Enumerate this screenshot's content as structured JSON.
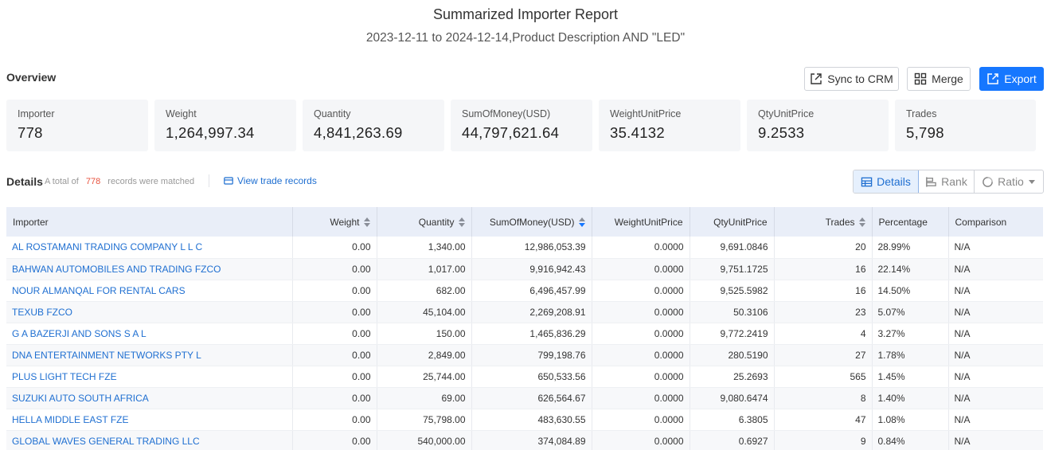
{
  "report": {
    "title": "Summarized Importer Report",
    "subtitle": "2023-12-11 to 2024-12-14,Product Description AND \"LED\""
  },
  "overview": {
    "label": "Overview",
    "buttons": {
      "sync": "Sync to CRM",
      "merge": "Merge",
      "export": "Export"
    },
    "stats": [
      {
        "label": "Importer",
        "value": "778"
      },
      {
        "label": "Weight",
        "value": "1,264,997.34"
      },
      {
        "label": "Quantity",
        "value": "4,841,263.69"
      },
      {
        "label": "SumOfMoney(USD)",
        "value": "44,797,621.64"
      },
      {
        "label": "WeightUnitPrice",
        "value": "35.4132"
      },
      {
        "label": "QtyUnitPrice",
        "value": "9.2533"
      },
      {
        "label": "Trades",
        "value": "5,798"
      }
    ]
  },
  "details": {
    "label": "Details",
    "prefix": "A total of",
    "count": "778",
    "suffix": "records were matched",
    "view_trade": "View trade records",
    "views": {
      "details": "Details",
      "rank": "Rank",
      "ratio": "Ratio"
    }
  },
  "table": {
    "headers": [
      "Importer",
      "Weight",
      "Quantity",
      "SumOfMoney(USD)",
      "WeightUnitPrice",
      "QtyUnitPrice",
      "Trades",
      "Percentage",
      "Comparison"
    ],
    "rows": [
      [
        "AL ROSTAMANI TRADING COMPANY L L C",
        "0.00",
        "1,340.00",
        "12,986,053.39",
        "0.0000",
        "9,691.0846",
        "20",
        "28.99%",
        "N/A"
      ],
      [
        "BAHWAN AUTOMOBILES AND TRADING FZCO",
        "0.00",
        "1,017.00",
        "9,916,942.43",
        "0.0000",
        "9,751.1725",
        "16",
        "22.14%",
        "N/A"
      ],
      [
        "NOUR ALMANQAL FOR RENTAL CARS",
        "0.00",
        "682.00",
        "6,496,457.99",
        "0.0000",
        "9,525.5982",
        "16",
        "14.50%",
        "N/A"
      ],
      [
        "TEXUB FZCO",
        "0.00",
        "45,104.00",
        "2,269,208.91",
        "0.0000",
        "50.3106",
        "23",
        "5.07%",
        "N/A"
      ],
      [
        "G A BAZERJI AND SONS S A L",
        "0.00",
        "150.00",
        "1,465,836.29",
        "0.0000",
        "9,772.2419",
        "4",
        "3.27%",
        "N/A"
      ],
      [
        "DNA ENTERTAINMENT NETWORKS PTY L",
        "0.00",
        "2,849.00",
        "799,198.76",
        "0.0000",
        "280.5190",
        "27",
        "1.78%",
        "N/A"
      ],
      [
        "PLUS LIGHT TECH FZE",
        "0.00",
        "25,744.00",
        "650,533.56",
        "0.0000",
        "25.2693",
        "565",
        "1.45%",
        "N/A"
      ],
      [
        "SUZUKI AUTO SOUTH AFRICA",
        "0.00",
        "69.00",
        "626,564.67",
        "0.0000",
        "9,080.6474",
        "8",
        "1.40%",
        "N/A"
      ],
      [
        "HELLA MIDDLE EAST FZE",
        "0.00",
        "75,798.00",
        "483,630.55",
        "0.0000",
        "6.3805",
        "47",
        "1.08%",
        "N/A"
      ],
      [
        "GLOBAL WAVES GENERAL TRADING LLC",
        "0.00",
        "540,000.00",
        "374,084.89",
        "0.0000",
        "0.6927",
        "9",
        "0.84%",
        "N/A"
      ]
    ]
  },
  "colors": {
    "accent": "#1677ff",
    "link": "#1f6fd1",
    "count_highlight": "#e8533f",
    "header_bg": "#e9eef8"
  }
}
